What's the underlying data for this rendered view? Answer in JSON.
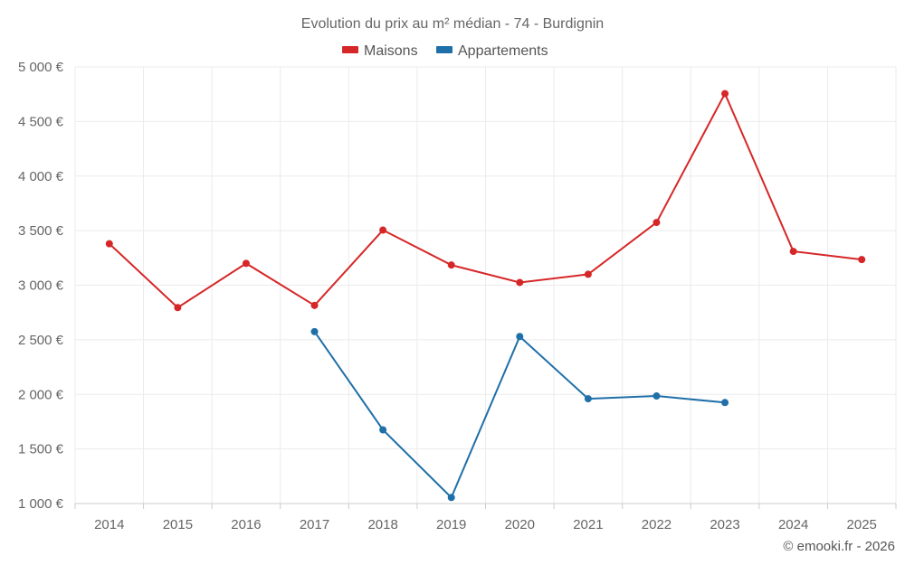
{
  "chart_data": {
    "type": "line",
    "title": "Evolution du prix au m² médian - 74 - Burdignin",
    "categories": [
      "2014",
      "2015",
      "2016",
      "2017",
      "2018",
      "2019",
      "2020",
      "2021",
      "2022",
      "2023",
      "2024",
      "2025"
    ],
    "series": [
      {
        "name": "Maisons",
        "color": "#d62728",
        "values": [
          3380,
          2795,
          3200,
          2815,
          3505,
          3185,
          3025,
          3100,
          3575,
          4755,
          3310,
          3235
        ]
      },
      {
        "name": "Appartements",
        "color": "#1f6fa8",
        "values": [
          null,
          null,
          null,
          2575,
          1675,
          1055,
          2530,
          1960,
          1985,
          1925,
          null,
          null
        ]
      }
    ],
    "ylim": [
      1000,
      5000
    ],
    "yticks": [
      1000,
      1500,
      2000,
      2500,
      3000,
      3500,
      4000,
      4500,
      5000
    ],
    "ytick_labels": [
      "1 000 €",
      "1 500 €",
      "2 000 €",
      "2 500 €",
      "3 000 €",
      "3 500 €",
      "4 000 €",
      "4 500 €",
      "5 000 €"
    ],
    "xlabel": "",
    "ylabel": "",
    "grid": true,
    "legend_position": "top-center"
  },
  "credit": "© emooki.fr - 2026"
}
